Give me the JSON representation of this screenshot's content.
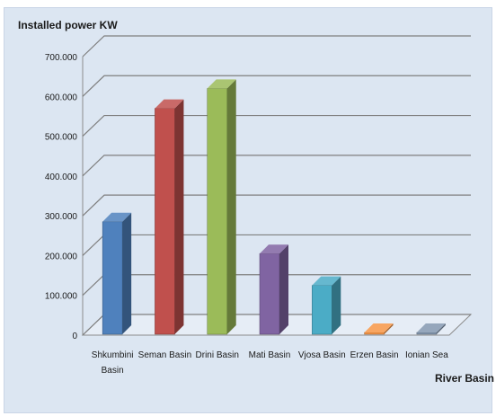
{
  "chart_data": {
    "type": "bar",
    "title": "",
    "ylabel": "Installed power KW",
    "xlabel": "River Basin",
    "categories": [
      "Shkumbini Basin",
      "Seman Basin",
      "Drini Basin",
      "Mati Basin",
      "Vjosa Basin",
      "Erzen Basin",
      "Ionian Sea"
    ],
    "category_lines": [
      [
        "Shkumbini",
        "Basin"
      ],
      [
        "Seman Basin"
      ],
      [
        "Drini Basin"
      ],
      [
        "Mati Basin"
      ],
      [
        "Vjosa Basin"
      ],
      [
        "Erzen Basin"
      ],
      [
        "Ionian Sea"
      ]
    ],
    "values": [
      285000,
      570000,
      620000,
      205000,
      125000,
      2000,
      1500
    ],
    "colors": [
      "#4f81bd",
      "#c0504d",
      "#9bbb59",
      "#8064a2",
      "#4bacc6",
      "#f79646",
      "#8497b0"
    ],
    "ylim": [
      0,
      700000
    ],
    "yticks": [
      0,
      100000,
      200000,
      300000,
      400000,
      500000,
      600000,
      700000
    ],
    "ytick_labels": [
      "0",
      "100.000",
      "200.000",
      "300.000",
      "400.000",
      "500.000",
      "600.000",
      "700.000"
    ],
    "grid": true,
    "legend": "none",
    "style": "3d-column"
  }
}
